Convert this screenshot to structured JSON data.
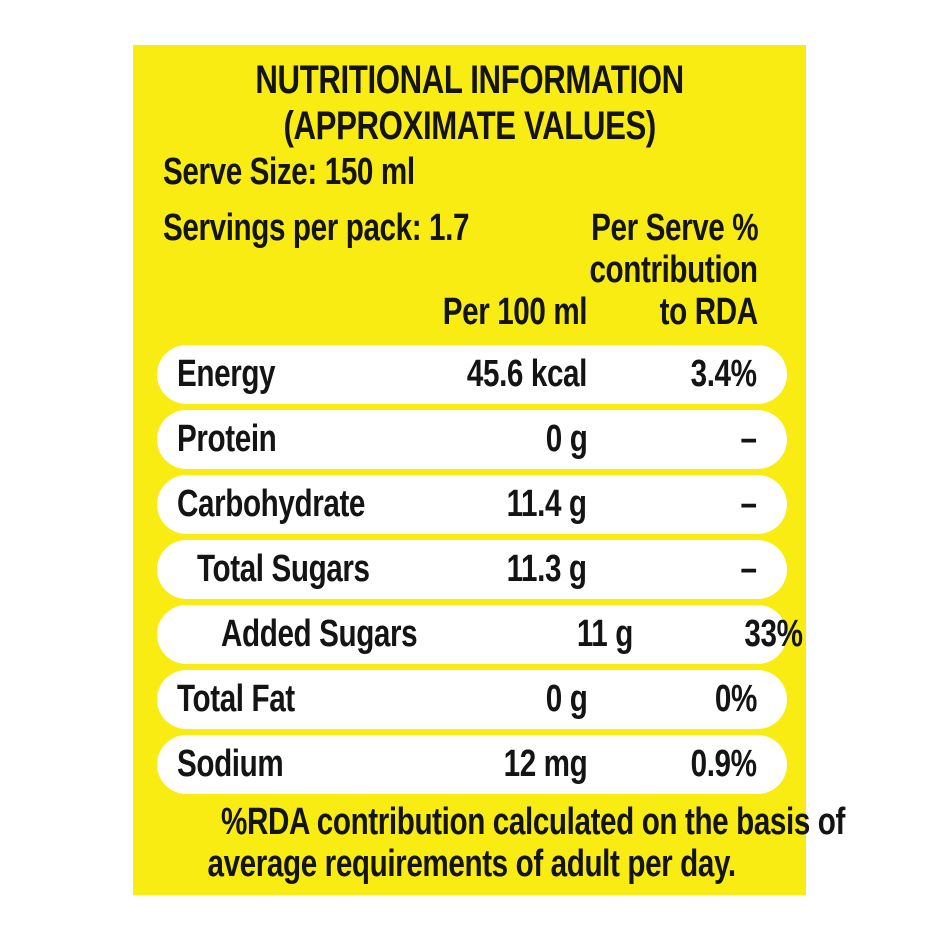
{
  "label": {
    "title_line1": "NUTRITIONAL INFORMATION",
    "title_line2": "(APPROXIMATE VALUES)",
    "serve_size": "Serve Size: 150 ml",
    "servings_per_pack": "Servings per pack: 1.7",
    "columns": {
      "per_serve_line1": "Per Serve %",
      "per_serve_line2": "contribution",
      "per_serve_line3": "to RDA",
      "per_100ml": "Per 100 ml"
    },
    "rows": [
      {
        "name": "Energy",
        "indent": 0,
        "per_100ml": "45.6 kcal",
        "rda": "3.4%"
      },
      {
        "name": "Protein",
        "indent": 0,
        "per_100ml": "0 g",
        "rda": "–"
      },
      {
        "name": "Carbohydrate",
        "indent": 0,
        "per_100ml": "11.4 g",
        "rda": "–"
      },
      {
        "name": "Total Sugars",
        "indent": 1,
        "per_100ml": "11.3 g",
        "rda": "–"
      },
      {
        "name": "Added Sugars",
        "indent": 2,
        "per_100ml": "11 g",
        "rda": "33%"
      },
      {
        "name": "Total Fat",
        "indent": 0,
        "per_100ml": "0 g",
        "rda": "0%"
      },
      {
        "name": "Sodium",
        "indent": 0,
        "per_100ml": "12 mg",
        "rda": "0.9%"
      }
    ],
    "footnote_line1": "%RDA contribution calculated on the basis of",
    "footnote_line2": "average requirements of adult per day.",
    "colors": {
      "panel_yellow": "#F8EC12",
      "row_white": "#FFFFFF",
      "text_black": "#141414"
    }
  }
}
